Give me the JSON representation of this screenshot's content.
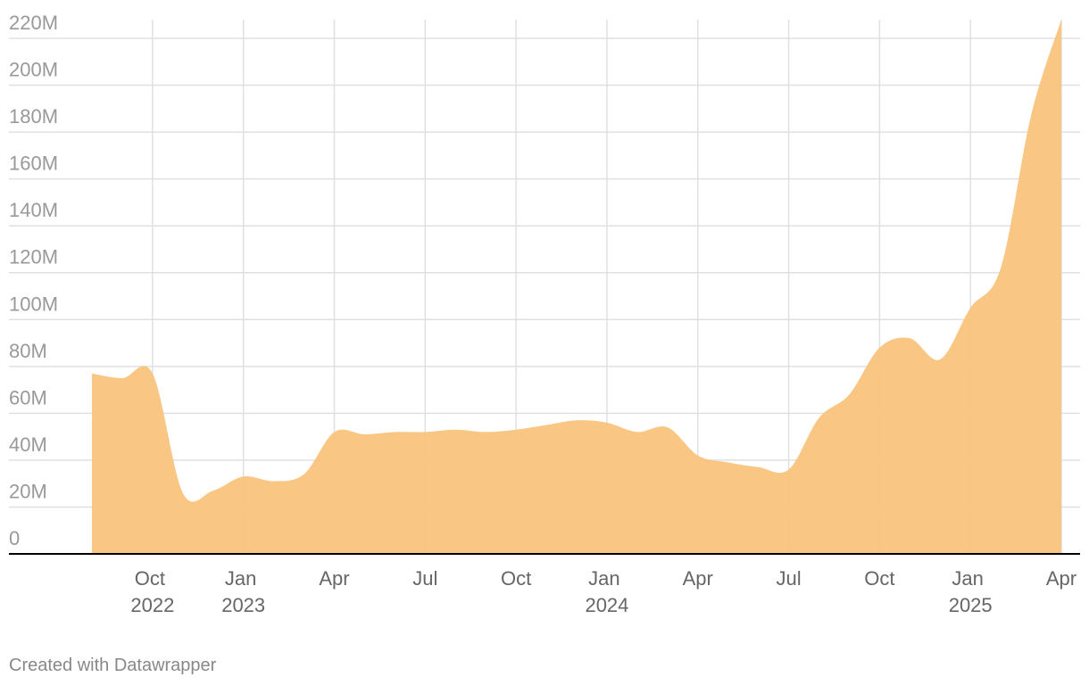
{
  "chart_data": {
    "type": "area",
    "x": [
      "2022-08",
      "2022-09",
      "2022-10",
      "2022-11",
      "2022-12",
      "2023-01",
      "2023-02",
      "2023-03",
      "2023-04",
      "2023-05",
      "2023-06",
      "2023-07",
      "2023-08",
      "2023-09",
      "2023-10",
      "2023-11",
      "2023-12",
      "2024-01",
      "2024-02",
      "2024-03",
      "2024-04",
      "2024-05",
      "2024-06",
      "2024-07",
      "2024-08",
      "2024-09",
      "2024-10",
      "2024-11",
      "2024-12",
      "2025-01",
      "2025-02",
      "2025-03",
      "2025-04"
    ],
    "values": [
      77,
      75,
      77,
      26,
      27,
      33,
      31,
      34,
      52,
      51,
      52,
      52,
      53,
      52,
      53,
      55,
      57,
      56,
      52,
      54,
      42,
      39,
      37,
      36,
      58,
      68,
      88,
      92,
      83,
      105,
      122,
      187,
      228
    ],
    "color": "#f9c37d",
    "xlim": [
      "2022-08",
      "2025-04"
    ],
    "xticks": [
      {
        "value": "2022-10",
        "label": "Oct 2022"
      },
      {
        "value": "2023-01",
        "label": "Jan 2023"
      },
      {
        "value": "2023-04",
        "label": "Apr"
      },
      {
        "value": "2023-07",
        "label": "Jul"
      },
      {
        "value": "2023-10",
        "label": "Oct"
      },
      {
        "value": "2024-01",
        "label": "Jan 2024"
      },
      {
        "value": "2024-04",
        "label": "Apr"
      },
      {
        "value": "2024-07",
        "label": "Jul"
      },
      {
        "value": "2024-10",
        "label": "Oct"
      },
      {
        "value": "2025-01",
        "label": "Jan 2025"
      },
      {
        "value": "2025-04",
        "label": "Apr"
      }
    ],
    "ylim": [
      0,
      228
    ],
    "yticks": [
      0,
      {
        "value": 20,
        "label": "20M"
      },
      {
        "value": 40,
        "label": "40M"
      },
      {
        "value": 60,
        "label": "60M"
      },
      {
        "value": 80,
        "label": "80M"
      },
      {
        "value": 100,
        "label": "100M"
      },
      {
        "value": 120,
        "label": "120M"
      },
      {
        "value": 140,
        "label": "140M"
      },
      {
        "value": 160,
        "label": "160M"
      },
      {
        "value": 180,
        "label": "180M"
      },
      {
        "value": 200,
        "label": "200M"
      },
      {
        "value": 220,
        "label": "220M"
      }
    ],
    "grid": true,
    "credit": "Created with Datawrapper"
  }
}
